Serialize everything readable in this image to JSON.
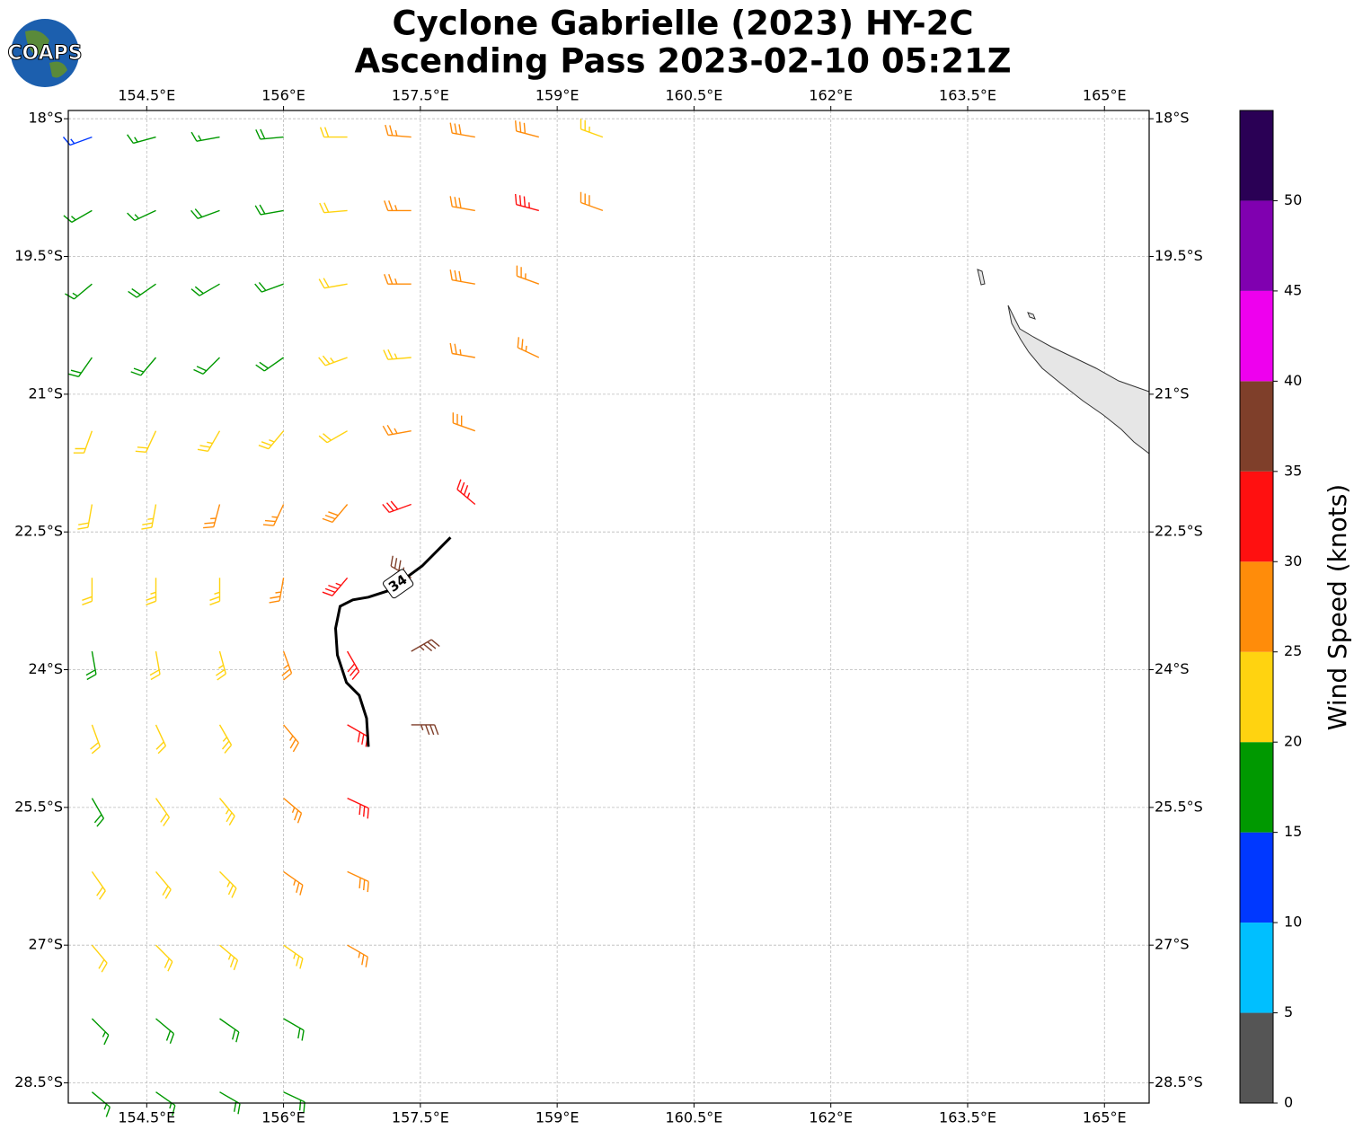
{
  "logo": "COAPS",
  "chart_data": {
    "type": "barbs",
    "title": "Cyclone Gabrielle (2023) HY-2C",
    "subtitle": "Ascending Pass 2023-02-10 05:21Z",
    "xlim": [
      153.64,
      165.49
    ],
    "ylim": [
      -28.72,
      -17.91
    ],
    "xticks": [
      {
        "value": 154.5,
        "label": "154.5°E"
      },
      {
        "value": 156,
        "label": "156°E"
      },
      {
        "value": 157.5,
        "label": "157.5°E"
      },
      {
        "value": 159,
        "label": "159°E"
      },
      {
        "value": 160.5,
        "label": "160.5°E"
      },
      {
        "value": 162,
        "label": "162°E"
      },
      {
        "value": 163.5,
        "label": "163.5°E"
      },
      {
        "value": 165,
        "label": "165°E"
      }
    ],
    "yticks": [
      {
        "value": -18,
        "label": "18°S"
      },
      {
        "value": -19.5,
        "label": "19.5°S"
      },
      {
        "value": -21,
        "label": "21°S"
      },
      {
        "value": -22.5,
        "label": "22.5°S"
      },
      {
        "value": -24,
        "label": "24°S"
      },
      {
        "value": -25.5,
        "label": "25.5°S"
      },
      {
        "value": -27,
        "label": "27°S"
      },
      {
        "value": -28.5,
        "label": "28.5°S"
      }
    ],
    "grid": true,
    "barbs": {
      "lon": [
        153.9,
        154.6,
        155.3,
        156.0,
        156.7,
        157.4,
        158.1,
        158.8,
        159.5,
        153.9,
        154.6,
        155.3,
        156.0,
        156.7,
        157.4,
        158.1,
        158.8,
        159.5,
        153.9,
        154.6,
        155.3,
        156.0,
        156.7,
        157.4,
        158.1,
        158.8,
        153.9,
        154.6,
        155.3,
        156.0,
        156.7,
        157.4,
        158.1,
        158.8,
        153.9,
        154.6,
        155.3,
        156.0,
        156.7,
        157.4,
        158.1,
        153.9,
        154.6,
        155.3,
        156.0,
        156.7,
        157.4,
        158.1,
        153.9,
        154.6,
        155.3,
        156.0,
        156.7,
        157.4,
        153.9,
        154.6,
        155.3,
        156.0,
        156.7,
        157.4,
        153.9,
        154.6,
        155.3,
        156.0,
        156.7,
        157.4,
        153.9,
        154.6,
        155.3,
        156.0,
        156.7,
        153.9,
        154.6,
        155.3,
        156.0,
        156.7,
        153.9,
        154.6,
        155.3,
        156.0,
        156.7,
        153.9,
        154.6,
        155.3,
        156.0,
        153.9,
        154.6,
        155.3,
        156.0
      ],
      "lat": [
        -18.2,
        -18.2,
        -18.2,
        -18.2,
        -18.2,
        -18.2,
        -18.2,
        -18.2,
        -18.2,
        -19.0,
        -19.0,
        -19.0,
        -19.0,
        -19.0,
        -19.0,
        -19.0,
        -19.0,
        -19.0,
        -19.8,
        -19.8,
        -19.8,
        -19.8,
        -19.8,
        -19.8,
        -19.8,
        -19.8,
        -20.6,
        -20.6,
        -20.6,
        -20.6,
        -20.6,
        -20.6,
        -20.6,
        -20.6,
        -21.4,
        -21.4,
        -21.4,
        -21.4,
        -21.4,
        -21.4,
        -21.4,
        -22.2,
        -22.2,
        -22.2,
        -22.2,
        -22.2,
        -22.2,
        -22.2,
        -23.0,
        -23.0,
        -23.0,
        -23.0,
        -23.0,
        -23.0,
        -23.8,
        -23.8,
        -23.8,
        -23.8,
        -23.8,
        -23.8,
        -24.6,
        -24.6,
        -24.6,
        -24.6,
        -24.6,
        -24.6,
        -25.4,
        -25.4,
        -25.4,
        -25.4,
        -25.4,
        -26.2,
        -26.2,
        -26.2,
        -26.2,
        -26.2,
        -27.0,
        -27.0,
        -27.0,
        -27.0,
        -27.0,
        -27.8,
        -27.8,
        -27.8,
        -27.8,
        -28.6,
        -28.6,
        -28.6,
        -28.6
      ],
      "speed": [
        13,
        16,
        17,
        18,
        22,
        26,
        28,
        29,
        24,
        16,
        17,
        18,
        19,
        22,
        26,
        29,
        33,
        29,
        17,
        18,
        19,
        19,
        22,
        26,
        28,
        27,
        18,
        19,
        18,
        19,
        23,
        24,
        27,
        27,
        21,
        22,
        24,
        23,
        22,
        27,
        28,
        22,
        23,
        25,
        27,
        29,
        31,
        33,
        22,
        23,
        24,
        27,
        33,
        37,
        18,
        22,
        23,
        27,
        31,
        37,
        21,
        22,
        23,
        27,
        31,
        37,
        18,
        22,
        23,
        26,
        32,
        22,
        22,
        23,
        25,
        28,
        21,
        22,
        23,
        24,
        25,
        17,
        18,
        18,
        19,
        17,
        17,
        18,
        19
      ],
      "direction": [
        250,
        255,
        260,
        265,
        270,
        275,
        280,
        285,
        290,
        240,
        245,
        250,
        260,
        265,
        270,
        280,
        285,
        290,
        230,
        235,
        240,
        250,
        260,
        270,
        280,
        290,
        215,
        220,
        225,
        235,
        250,
        265,
        280,
        295,
        200,
        205,
        210,
        220,
        240,
        260,
        290,
        190,
        190,
        195,
        205,
        220,
        250,
        310,
        180,
        180,
        180,
        190,
        220,
        300,
        170,
        170,
        165,
        160,
        150,
        60,
        160,
        155,
        150,
        140,
        120,
        90,
        150,
        145,
        140,
        130,
        115,
        145,
        140,
        135,
        125,
        115,
        140,
        135,
        130,
        125,
        120,
        135,
        130,
        125,
        120,
        130,
        125,
        120,
        115
      ]
    },
    "contour": {
      "label": "34",
      "lon": [
        157.83,
        157.52,
        157.15,
        156.93,
        156.76,
        156.62,
        156.57,
        156.59,
        156.69,
        156.83,
        156.91,
        156.93
      ],
      "lat": [
        -22.56,
        -22.87,
        -23.14,
        -23.21,
        -23.24,
        -23.31,
        -23.55,
        -23.84,
        -24.14,
        -24.28,
        -24.53,
        -24.84
      ]
    },
    "colorbar": {
      "label": "Wind Speed (knots)",
      "ylim": [
        0,
        55
      ],
      "yticks": [
        0,
        5,
        10,
        15,
        20,
        25,
        30,
        35,
        40,
        45,
        50
      ],
      "levels": [
        0,
        5,
        10,
        15,
        20,
        25,
        30,
        35,
        40,
        45,
        50,
        55
      ],
      "colors": [
        "#555555",
        "#00bfff",
        "#0038ff",
        "#009900",
        "#ffd310",
        "#ff8c0a",
        "#ff1010",
        "#7f3f2a",
        "#ee00ee",
        "#8000b0",
        "#2a0055"
      ]
    }
  }
}
